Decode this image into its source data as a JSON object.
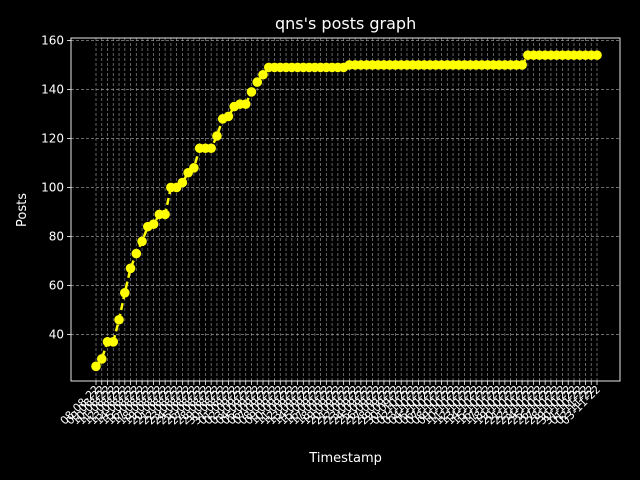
{
  "chart_data": {
    "type": "line",
    "title": "qns's posts graph",
    "xlabel": "Timestamp",
    "ylabel": "Posts",
    "ylim": [
      21,
      161
    ],
    "yticks": [
      40,
      60,
      80,
      100,
      120,
      140,
      160
    ],
    "grid": true,
    "legend": "none",
    "colors": {
      "background": "#000000",
      "line": "#ffff00",
      "marker": "#ffff00",
      "grid": "#b0b0b0",
      "text": "#ffffff"
    },
    "x": [
      "08-08-22",
      "09-08-22",
      "10-08-22",
      "11-08-22",
      "12-08-22",
      "13-08-22",
      "14-08-22",
      "15-08-22",
      "16-08-22",
      "17-08-22",
      "18-08-22",
      "19-08-22",
      "20-08-22",
      "21-08-22",
      "22-08-22",
      "23-08-22",
      "24-08-22",
      "25-08-22",
      "26-08-22",
      "27-08-22",
      "28-08-22",
      "29-08-22",
      "30-08-22",
      "31-08-22",
      "01-09-22",
      "02-09-22",
      "03-09-22",
      "04-09-22",
      "05-09-22",
      "06-09-22",
      "07-09-22",
      "08-09-22",
      "09-09-22",
      "10-09-22",
      "11-09-22",
      "12-09-22",
      "13-09-22",
      "14-09-22",
      "15-09-22",
      "16-09-22",
      "17-09-22",
      "18-09-22",
      "19-09-22",
      "20-09-22",
      "21-09-22",
      "22-09-22",
      "23-09-22",
      "24-09-22",
      "25-09-22",
      "26-09-22",
      "27-09-22",
      "28-09-22",
      "29-09-22",
      "30-09-22",
      "01-10-22",
      "02-10-22",
      "03-10-22",
      "04-10-22",
      "05-10-22",
      "06-10-22",
      "07-10-22",
      "08-10-22",
      "09-10-22",
      "10-10-22",
      "11-10-22",
      "12-10-22",
      "13-10-22",
      "14-10-22",
      "15-10-22",
      "16-10-22",
      "17-10-22",
      "18-10-22",
      "19-10-22",
      "20-10-22",
      "21-10-22",
      "22-10-22",
      "23-10-22",
      "24-10-22",
      "25-10-22",
      "26-10-22",
      "27-10-22",
      "28-10-22",
      "29-10-22",
      "30-10-22",
      "31-10-22",
      "01-11-22",
      "02-11-22",
      "03-11-22"
    ],
    "series": [
      {
        "values": [
          27,
          30,
          37,
          37,
          46,
          57,
          67,
          73,
          78,
          84,
          85,
          89,
          89,
          100,
          100,
          102,
          106,
          108,
          116,
          116,
          116,
          121,
          128,
          129,
          133,
          134,
          134,
          139,
          143,
          146,
          149,
          149,
          149,
          149,
          149,
          149,
          149,
          149,
          149,
          149,
          149,
          149,
          149,
          149,
          150,
          150,
          150,
          150,
          150,
          150,
          150,
          150,
          150,
          150,
          150,
          150,
          150,
          150,
          150,
          150,
          150,
          150,
          150,
          150,
          150,
          150,
          150,
          150,
          150,
          150,
          150,
          150,
          150,
          150,
          150,
          154,
          154,
          154,
          154,
          154,
          154,
          154,
          154,
          154,
          154,
          154,
          154,
          154
        ]
      }
    ]
  }
}
